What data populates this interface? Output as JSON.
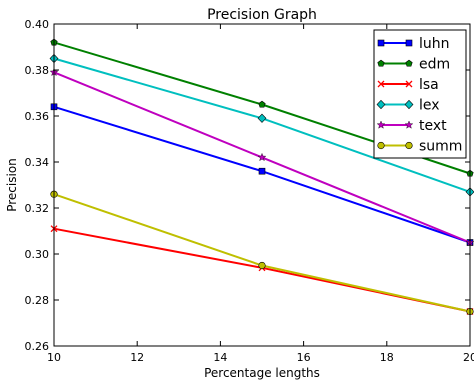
{
  "chart_data": {
    "type": "line",
    "title": "Precision Graph",
    "xlabel": "Percentage lengths",
    "ylabel": "Precision",
    "xlim": [
      10,
      20
    ],
    "ylim": [
      0.26,
      0.4
    ],
    "xticks": [
      10,
      12,
      14,
      16,
      18,
      20
    ],
    "yticks": [
      0.26,
      0.28,
      0.3,
      0.32,
      0.34,
      0.36,
      0.38,
      0.4
    ],
    "ytick_labels": [
      "0.26",
      "0.28",
      "0.30",
      "0.32",
      "0.34",
      "0.36",
      "0.38",
      "0.40"
    ],
    "x": [
      10,
      15,
      20
    ],
    "legend_position": "top-right",
    "grid": false,
    "series": [
      {
        "name": "luhn",
        "color": "#0000ff",
        "marker": "square",
        "values": [
          0.364,
          0.336,
          0.305
        ]
      },
      {
        "name": "edm",
        "color": "#008000",
        "marker": "pentagon",
        "values": [
          0.392,
          0.365,
          0.335
        ]
      },
      {
        "name": "lsa",
        "color": "#ff0000",
        "marker": "x",
        "values": [
          0.311,
          0.294,
          0.275
        ]
      },
      {
        "name": "lex",
        "color": "#00bfbf",
        "marker": "diamond",
        "values": [
          0.385,
          0.359,
          0.327
        ]
      },
      {
        "name": "text",
        "color": "#bf00bf",
        "marker": "star",
        "values": [
          0.379,
          0.342,
          0.305
        ]
      },
      {
        "name": "summ",
        "color": "#bfbf00",
        "marker": "circle",
        "values": [
          0.326,
          0.295,
          0.275
        ]
      }
    ]
  }
}
